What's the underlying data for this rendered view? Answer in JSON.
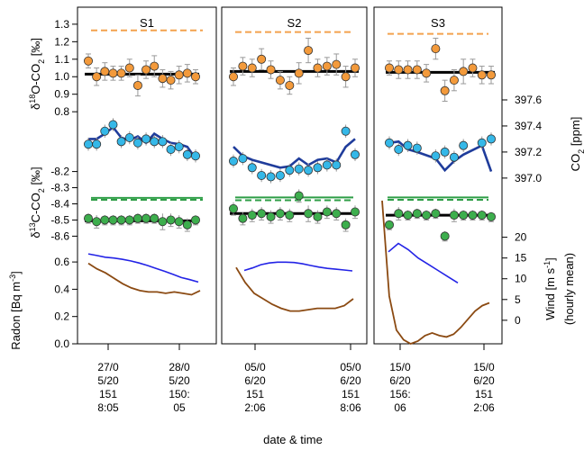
{
  "chart_data": {
    "type": "line",
    "xlabel": "date & time",
    "panels": [
      {
        "title": "S1",
        "xticks": [
          [
            "27/0",
            "5/20",
            "151",
            "8:05"
          ],
          [
            "28/0",
            "5/20",
            "150:",
            "05"
          ]
        ],
        "d18O": {
          "ref": 1.265,
          "mean": 1.015,
          "points": [
            1.09,
            1.0,
            1.03,
            1.02,
            1.02,
            1.05,
            0.95,
            1.04,
            1.06,
            0.99,
            0.98,
            1.01,
            1.02,
            1.0
          ],
          "err": [
            0.04,
            0.05,
            0.05,
            0.04,
            0.04,
            0.05,
            0.06,
            0.05,
            0.06,
            0.05,
            0.05,
            0.05,
            0.05,
            0.04
          ]
        },
        "co2": {
          "points": [
            397.26,
            397.26,
            397.36,
            397.41,
            397.28,
            397.31,
            397.27,
            397.3,
            397.28,
            397.28,
            397.22,
            397.24,
            397.18,
            397.17
          ],
          "line": [
            397.3,
            397.3,
            397.34,
            397.39,
            397.31,
            397.29,
            397.32,
            397.27,
            397.34,
            397.3,
            397.27,
            397.26,
            397.24,
            397.15
          ]
        },
        "d13C": {
          "ref_solid": -8.363,
          "ref_dashed": -8.375,
          "mean": -8.505,
          "points": [
            -8.49,
            -8.51,
            -8.5,
            -8.5,
            -8.5,
            -8.5,
            -8.49,
            -8.49,
            -8.49,
            -8.51,
            -8.5,
            -8.51,
            -8.53,
            -8.5
          ],
          "err": [
            0.03,
            0.04,
            0.03,
            0.03,
            0.03,
            0.03,
            0.03,
            0.03,
            0.03,
            0.05,
            0.04,
            0.04,
            0.04,
            0.03
          ]
        },
        "wind": [
          16.0,
          15.6,
          15.2,
          15.0,
          14.7,
          14.3,
          13.8,
          13.2,
          12.5,
          11.8,
          11.1,
          10.3,
          9.8,
          9.2
        ],
        "radon": [
          0.59,
          0.55,
          0.52,
          0.48,
          0.44,
          0.41,
          0.39,
          0.38,
          0.38,
          0.37,
          0.38,
          0.37,
          0.36,
          0.39
        ]
      },
      {
        "title": "S2",
        "xticks": [
          [
            "05/0",
            "6/20",
            "151",
            "2:06"
          ],
          [
            "05/0",
            "6/20",
            "151",
            "8:06"
          ]
        ],
        "d18O": {
          "ref": 1.255,
          "mean": 1.03,
          "points": [
            1.0,
            1.06,
            1.05,
            1.1,
            1.04,
            0.98,
            0.95,
            1.02,
            1.15,
            1.05,
            1.06,
            1.07,
            1.0,
            1.05
          ],
          "err": [
            0.05,
            0.05,
            0.05,
            0.06,
            0.05,
            0.05,
            0.05,
            0.06,
            0.07,
            0.05,
            0.05,
            0.06,
            0.06,
            0.05
          ]
        },
        "co2": {
          "points": [
            397.13,
            397.15,
            397.08,
            397.02,
            397.01,
            397.02,
            397.06,
            397.07,
            397.06,
            397.08,
            397.1,
            397.1,
            397.36,
            397.18
          ],
          "line": [
            397.24,
            397.17,
            397.14,
            397.12,
            397.1,
            397.08,
            397.09,
            397.15,
            397.1,
            397.14,
            397.15,
            397.12,
            397.24,
            397.3
          ]
        },
        "d13C": {
          "ref_solid": -8.36,
          "ref_dashed": -8.378,
          "mean": -8.46,
          "points": [
            -8.43,
            -8.49,
            -8.47,
            -8.46,
            -8.48,
            -8.46,
            -8.47,
            -8.35,
            -8.46,
            -8.48,
            -8.45,
            -8.46,
            -8.53,
            -8.45
          ],
          "err": [
            0.04,
            0.04,
            0.04,
            0.04,
            0.04,
            0.04,
            0.04,
            0.04,
            0.05,
            0.04,
            0.04,
            0.04,
            0.04,
            0.04
          ]
        },
        "wind": [
          12.0,
          12.6,
          13.4,
          13.8,
          14.0,
          14.0,
          13.9,
          13.6,
          13.2,
          12.8,
          12.5,
          12.3,
          12.1,
          11.9
        ],
        "radon": [
          0.56,
          0.45,
          0.37,
          0.33,
          0.29,
          0.26,
          0.24,
          0.24,
          0.25,
          0.26,
          0.26,
          0.26,
          0.28,
          0.33
        ]
      },
      {
        "title": "S3",
        "xticks": [
          [
            "15/0",
            "6/20",
            "156:",
            "06"
          ],
          [
            "15/0",
            "6/20",
            "151",
            "2:06"
          ]
        ],
        "d18O": {
          "ref": 1.245,
          "mean": 1.025,
          "points": [
            1.05,
            1.04,
            1.04,
            1.04,
            1.02,
            1.16,
            0.92,
            0.98,
            1.03,
            1.05,
            1.01,
            1.01
          ],
          "err": [
            0.04,
            0.05,
            0.05,
            0.05,
            0.05,
            0.06,
            0.06,
            0.06,
            0.07,
            0.05,
            0.05,
            0.05
          ],
          "x": [
            0,
            1,
            2,
            3,
            4,
            5,
            6,
            7,
            8,
            9,
            10,
            11
          ]
        },
        "co2": {
          "points": [
            397.27,
            397.22,
            397.25,
            397.23,
            397.17,
            397.2,
            397.16,
            397.25,
            397.27,
            397.3
          ],
          "line": [
            397.27,
            397.28,
            397.22,
            397.2,
            397.15,
            397.06,
            397.13,
            397.18,
            397.25,
            397.05
          ],
          "x": [
            0,
            1,
            2,
            3,
            5,
            6,
            7,
            8,
            10,
            11
          ]
        },
        "d13C": {
          "ref_solid": -8.36,
          "ref_dashed": -8.375,
          "mean": -8.47,
          "points": [
            -8.53,
            -8.46,
            -8.47,
            -8.46,
            -8.47,
            -8.46,
            -8.6,
            -8.47,
            -8.47,
            -8.47,
            -8.47,
            -8.48
          ],
          "err": [
            0.03,
            0.04,
            0.03,
            0.03,
            0.03,
            0.03,
            0.03,
            0.04,
            0.03,
            0.03,
            0.03,
            0.03
          ],
          "x": [
            0,
            1,
            2,
            3,
            4,
            5,
            6,
            7,
            8,
            9,
            10,
            11
          ]
        },
        "wind": [
          16.5,
          18.5,
          17.0,
          15.0,
          13.5,
          12.0,
          10.5,
          9.0
        ],
        "radon": [
          1.05,
          0.35,
          0.1,
          0.03,
          0.0,
          0.02,
          0.06,
          0.08,
          0.06,
          0.05,
          0.07,
          0.12,
          0.18,
          0.24,
          0.28,
          0.3
        ]
      }
    ],
    "axes": {
      "d18O": {
        "label_pre": "δ",
        "label_sup": "18",
        "label_post": "O-CO",
        "label_sub": "2",
        "label_unit": " [‰]",
        "ylim": [
          0.7,
          1.32
        ],
        "ticks": [
          "0.8",
          "0.9",
          "1.0",
          "1.1",
          "1.2",
          "1.3"
        ]
      },
      "co2": {
        "label_pre": "CO",
        "label_sub": "2",
        "label_post": " [ppm]",
        "ylim": [
          396.93,
          397.6
        ],
        "ticks": [
          "397.0",
          "397.2",
          "397.4",
          "397.6"
        ]
      },
      "d13C": {
        "label_pre": "δ",
        "label_sup": "13",
        "label_post": "C-CO",
        "label_sub": "2",
        "label_unit": " [‰]",
        "ylim": [
          -8.62,
          -8.18
        ],
        "ticks": [
          "-8.2",
          "-8.3",
          "-8.4",
          "-8.5",
          "-8.6"
        ]
      },
      "radon": {
        "label_pre": "Radon [Bq m",
        "label_sup": "-3",
        "label_post": "]",
        "ylim": [
          0,
          0.66
        ],
        "ticks": [
          "0.0",
          "0.2",
          "0.4",
          "0.6"
        ]
      },
      "wind": {
        "label_l1_pre": "Wind [m s",
        "label_l1_sup": "-1",
        "label_l1_post": "]",
        "label_l2": "(hourly mean)",
        "ylim": [
          -3.5,
          21
        ],
        "ticks": [
          "0",
          "5",
          "10",
          "15",
          "20"
        ]
      }
    },
    "colors": {
      "d18O_fill": "#F39A3B",
      "d18O_ref": "#F3A24E",
      "co2_fill": "#35B8E8",
      "co2_line": "#1F3C9B",
      "d13C_fill": "#3DAE4D",
      "d13C_ref": "#2E9E46",
      "wind": "#2323E6",
      "radon": "#8B4A12",
      "errorbar": "#999999",
      "mean": "#000000"
    }
  }
}
